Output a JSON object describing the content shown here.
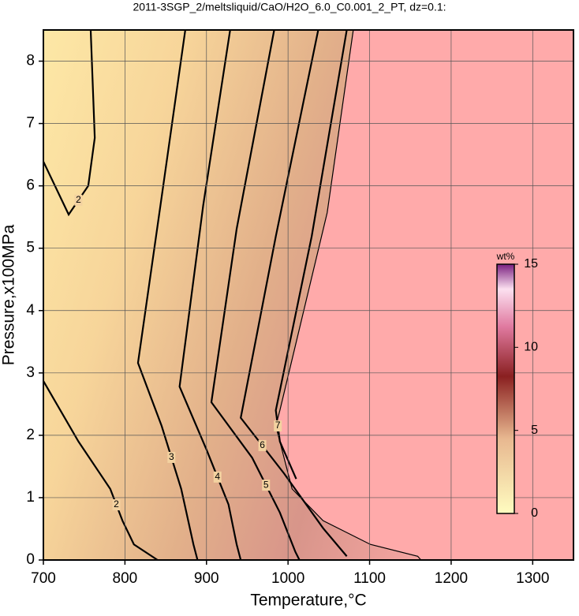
{
  "chart_data": {
    "type": "contour",
    "title": "2011-3SGP_2/meltsliquid/CaO/H2O_6.0_C0.001_2_PT, dz=0.1:",
    "xlabel": "Temperature,°C",
    "ylabel": "Pressure,x100MPa",
    "xlim": [
      700,
      1350
    ],
    "ylim": [
      0,
      8.5
    ],
    "xticks": [
      700,
      800,
      900,
      1000,
      1100,
      1200,
      1300
    ],
    "yticks": [
      0,
      1,
      2,
      3,
      4,
      5,
      6,
      7,
      8
    ],
    "grid": true,
    "region": {
      "color": "#ffaaaa",
      "x": [
        1080,
        1048,
        990,
        985,
        1005,
        1043,
        1101,
        1159,
        1163,
        1350,
        1350
      ],
      "y": [
        8.5,
        5.57,
        2.4,
        2.15,
        1.14,
        0.63,
        0.25,
        0.06,
        0,
        0,
        8.5
      ]
    },
    "series": [
      {
        "label": "2",
        "x": [
          758,
          763,
          755,
          731,
          700
        ],
        "y": [
          8.5,
          6.77,
          6.0,
          5.54,
          6.39
        ]
      },
      {
        "label": "2",
        "x": [
          700,
          743,
          782,
          797,
          811,
          840
        ],
        "y": [
          2.87,
          1.9,
          1.14,
          0.63,
          0.25,
          0
        ]
      },
      {
        "label": "3",
        "x": [
          874,
          845,
          816,
          845,
          869,
          884,
          889
        ],
        "y": [
          8.5,
          5.82,
          3.16,
          2.15,
          1.14,
          0.25,
          0
        ]
      },
      {
        "label": "4",
        "x": [
          929,
          896,
          867,
          900,
          927,
          937,
          942
        ],
        "y": [
          8.5,
          5.69,
          2.78,
          1.77,
          0.89,
          0.25,
          0
        ]
      },
      {
        "label": "5",
        "x": [
          983,
          937,
          906,
          956,
          990,
          1009,
          1014
        ],
        "y": [
          8.5,
          5.31,
          2.53,
          1.64,
          0.76,
          0.13,
          0
        ]
      },
      {
        "label": "6",
        "x": [
          1037,
          985,
          942,
          995,
          1043,
          1072
        ],
        "y": [
          8.5,
          5.19,
          2.28,
          1.39,
          0.51,
          0.06
        ]
      },
      {
        "label": "7",
        "x": [
          1072,
          1029,
          985,
          990,
          1010
        ],
        "y": [
          8.5,
          5.19,
          2.4,
          1.9,
          1.3
        ]
      }
    ],
    "colorbar": {
      "title": "wt%",
      "lim": [
        0,
        15
      ],
      "ticks": [
        0,
        5,
        10,
        15
      ]
    }
  }
}
